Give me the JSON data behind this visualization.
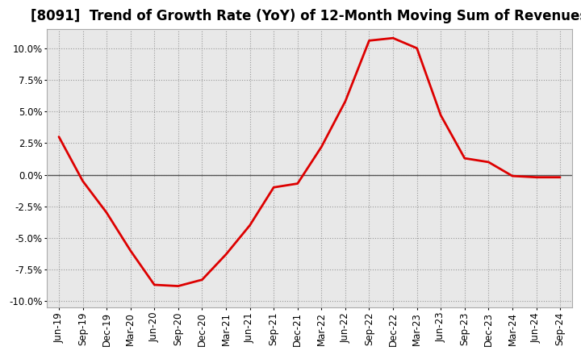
{
  "title": "[8091]  Trend of Growth Rate (YoY) of 12-Month Moving Sum of Revenues",
  "line_color": "#dd0000",
  "background_color": "#ffffff",
  "plot_bg_color": "#e8e8e8",
  "grid_color": "#999999",
  "zero_line_color": "#555555",
  "ylim": [
    -0.105,
    0.115
  ],
  "yticks": [
    -0.1,
    -0.075,
    -0.05,
    -0.025,
    0.0,
    0.025,
    0.05,
    0.075,
    0.1
  ],
  "x_labels": [
    "Jun-19",
    "Sep-19",
    "Dec-19",
    "Mar-20",
    "Jun-20",
    "Sep-20",
    "Dec-20",
    "Mar-21",
    "Jun-21",
    "Sep-21",
    "Dec-21",
    "Mar-22",
    "Jun-22",
    "Sep-22",
    "Dec-22",
    "Mar-23",
    "Jun-23",
    "Sep-23",
    "Dec-23",
    "Mar-24",
    "Jun-24",
    "Sep-24"
  ],
  "y_values": [
    0.03,
    -0.005,
    -0.03,
    -0.06,
    -0.087,
    -0.088,
    -0.083,
    -0.063,
    -0.04,
    -0.01,
    -0.007,
    0.022,
    0.058,
    0.106,
    0.108,
    0.1,
    0.047,
    0.013,
    0.01,
    -0.001,
    -0.002,
    -0.002
  ],
  "title_fontsize": 12,
  "tick_fontsize": 8.5
}
